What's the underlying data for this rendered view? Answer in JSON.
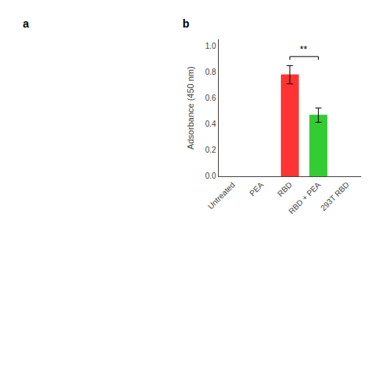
{
  "chart_data": {
    "type": "bar",
    "categories": [
      "Untreated",
      "PEA",
      "RBD",
      "RBD + PEA",
      "293T RBD"
    ],
    "values": [
      0.0,
      0.0,
      0.78,
      0.47,
      0.0
    ],
    "errors": [
      0.0,
      0.0,
      0.07,
      0.055,
      0.0
    ],
    "colors": [
      "#ffffff",
      "#ffffff",
      "#ff3333",
      "#33cc33",
      "#ffffff"
    ],
    "ylabel": "Adsorbance (450 nm)",
    "ylim": [
      0.0,
      1.05
    ],
    "yticks": [
      {
        "value": 0.0,
        "label": "0.0"
      },
      0.2,
      0.4,
      0.6,
      0.8,
      {
        "value": 1.0,
        "label": "1.0"
      }
    ],
    "grid": false,
    "annotations": [
      {
        "text": "a"
      },
      {
        "text": "b"
      },
      {
        "text": "**",
        "x": [
          "RBD",
          "RBD + PEA"
        ],
        "y": 0.92
      }
    ]
  }
}
